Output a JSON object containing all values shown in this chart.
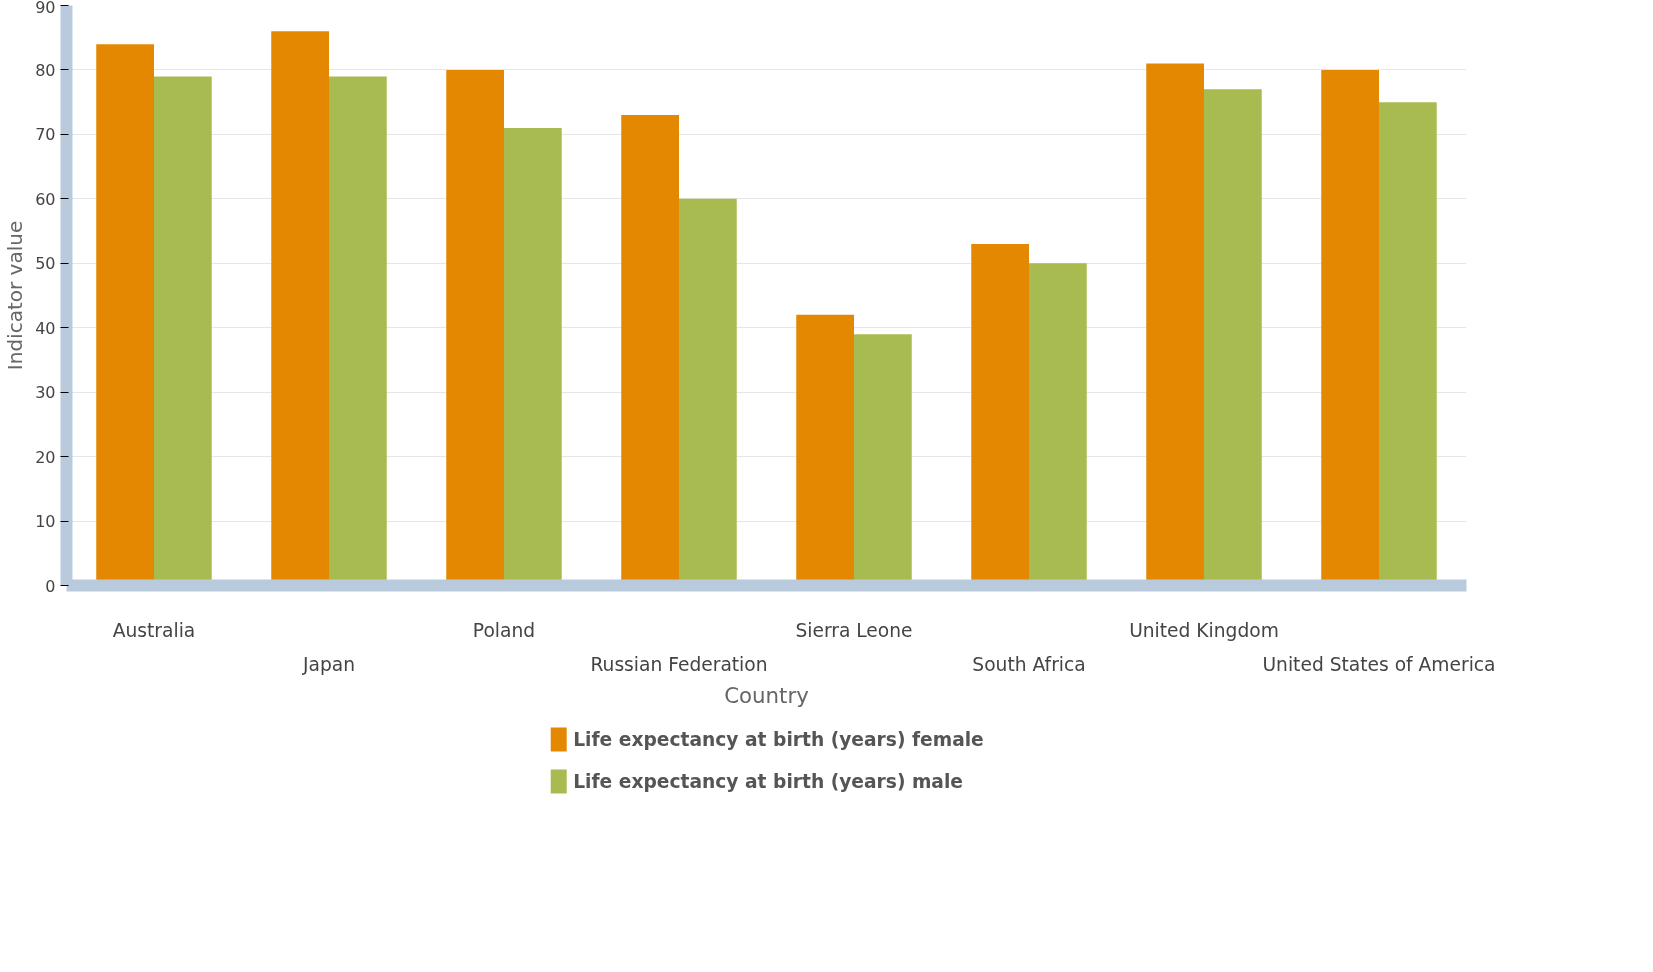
{
  "chart_data": {
    "type": "bar",
    "xlabel": "Country",
    "ylabel": "Indicator value",
    "categories": [
      "Australia",
      "Japan",
      "Poland",
      "Russian Federation",
      "Sierra Leone",
      "South Africa",
      "United Kingdom",
      "United States of America"
    ],
    "series": [
      {
        "name": "Life expectancy at birth (years) female",
        "color": "#e38800",
        "values": [
          84,
          86,
          80,
          73,
          42,
          53,
          81,
          80
        ]
      },
      {
        "name": "Life expectancy at birth (years) male",
        "color": "#a8bb50",
        "values": [
          79,
          79,
          71,
          60,
          39,
          50,
          77,
          75
        ]
      }
    ],
    "ylim": [
      0,
      90
    ],
    "yticks": [
      0,
      10,
      20,
      30,
      40,
      50,
      60,
      70,
      80,
      90
    ],
    "grid": "y",
    "legend": "bottom"
  }
}
